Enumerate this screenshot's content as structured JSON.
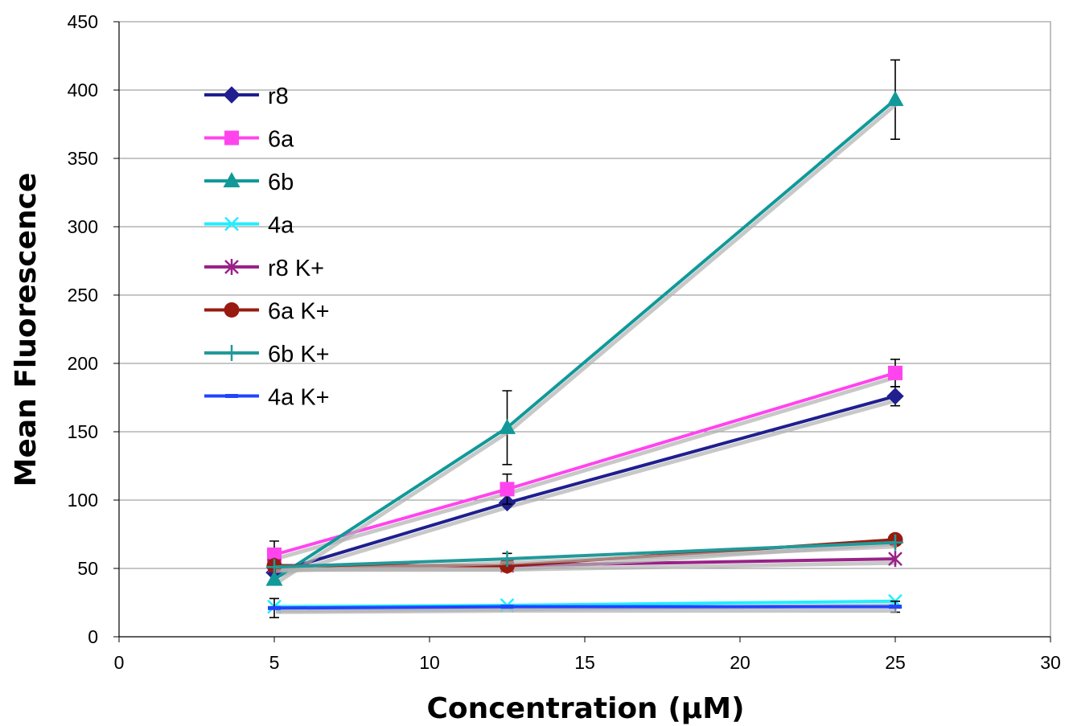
{
  "chart_data": {
    "type": "line",
    "title": "",
    "xlabel": "Concentration (μM)",
    "ylabel": "Mean Fluorescence",
    "xlim": [
      0,
      30
    ],
    "ylim": [
      0,
      450
    ],
    "xticks": [
      0,
      5,
      10,
      15,
      20,
      25,
      30
    ],
    "yticks": [
      0,
      50,
      100,
      150,
      200,
      250,
      300,
      350,
      400,
      450
    ],
    "grid": "horizontal",
    "legend_position": "top-left",
    "x": [
      5,
      12.5,
      25
    ],
    "series": [
      {
        "name": "r8",
        "values": [
          47,
          98,
          176
        ],
        "errors": [
          null,
          null,
          7
        ],
        "color": "#1f1f8f",
        "marker": "diamond"
      },
      {
        "name": "6a",
        "values": [
          60,
          108,
          193
        ],
        "errors": [
          10,
          11,
          10
        ],
        "color": "#ff44ee",
        "marker": "square"
      },
      {
        "name": "6b",
        "values": [
          42,
          153,
          393
        ],
        "errors": [
          null,
          27,
          29
        ],
        "color": "#119999",
        "marker": "triangle"
      },
      {
        "name": "4a",
        "values": [
          22,
          23,
          26
        ],
        "errors": [
          null,
          null,
          null
        ],
        "color": "#22eeff",
        "marker": "x"
      },
      {
        "name": "r8 K+",
        "values": [
          52,
          52,
          57
        ],
        "errors": [
          null,
          null,
          null
        ],
        "color": "#992288",
        "marker": "star"
      },
      {
        "name": "6a K+",
        "values": [
          52,
          52,
          71
        ],
        "errors": [
          null,
          null,
          null
        ],
        "color": "#991a0f",
        "marker": "circle"
      },
      {
        "name": "6b K+",
        "values": [
          51,
          57,
          69
        ],
        "errors": [
          null,
          4,
          null
        ],
        "color": "#229999",
        "marker": "plus"
      },
      {
        "name": "4a K+",
        "values": [
          21,
          22,
          22
        ],
        "errors": [
          7,
          null,
          4
        ],
        "color": "#2244ff",
        "marker": "dash"
      }
    ]
  }
}
